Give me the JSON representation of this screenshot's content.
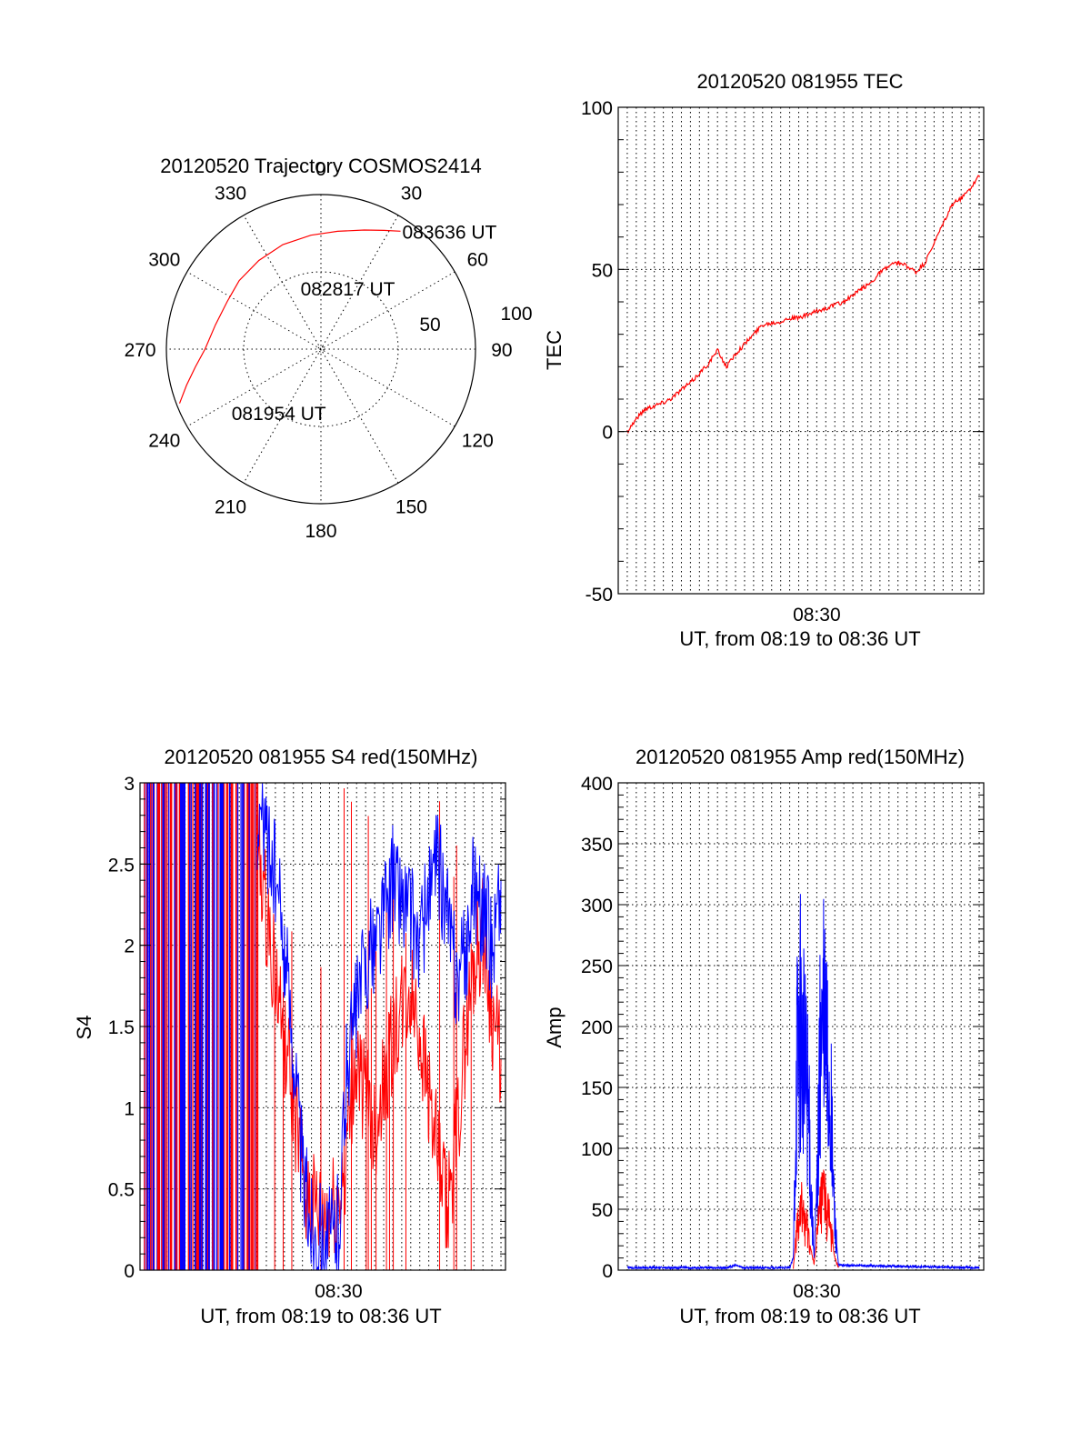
{
  "chart_data": [
    {
      "type": "polar",
      "title": "20120520 Trajectory COSMOS2414",
      "azimuth_labels": [
        "0",
        "30",
        "60",
        "90",
        "120",
        "150",
        "180",
        "210",
        "240",
        "270",
        "300",
        "330"
      ],
      "radial_labels": [
        "50",
        "100"
      ],
      "series": [
        {
          "color": "#ff0000",
          "points": [
            {
              "az": 249,
              "zen": 98
            },
            {
              "az": 255,
              "zen": 90
            },
            {
              "az": 262,
              "zen": 82
            },
            {
              "az": 270,
              "zen": 75
            },
            {
              "az": 283,
              "zen": 70
            },
            {
              "az": 297,
              "zen": 68
            },
            {
              "az": 310,
              "zen": 69
            },
            {
              "az": 325,
              "zen": 70
            },
            {
              "az": 340,
              "zen": 72
            },
            {
              "az": 355,
              "zen": 74
            },
            {
              "az": 8,
              "zen": 77
            },
            {
              "az": 20,
              "zen": 82
            },
            {
              "az": 28,
              "zen": 87
            },
            {
              "az": 34,
              "zen": 92
            }
          ]
        }
      ],
      "annotations": [
        {
          "text": "083636 UT",
          "az": 34,
          "zen": 92
        },
        {
          "text": "082817 UT",
          "az": 340,
          "zen": 42
        },
        {
          "text": "081954 UT",
          "az": 235,
          "zen": 72
        }
      ]
    },
    {
      "type": "line",
      "title": "20120520 081955 TEC",
      "xlabel": "UT, from 08:19 to 08:36 UT",
      "ylabel": "TEC",
      "ylim": [
        -50,
        100
      ],
      "yticks": [
        "-50",
        "0",
        "50",
        "100"
      ],
      "xtick_labels": [
        {
          "text": "08:30",
          "t": 30
        }
      ],
      "grid": true,
      "series": [
        {
          "color": "#ff0000",
          "points": [
            [
              19.5,
              0
            ],
            [
              20,
              4
            ],
            [
              20.5,
              7
            ],
            [
              21,
              8
            ],
            [
              21.5,
              9
            ],
            [
              22,
              10.5
            ],
            [
              22.5,
              13
            ],
            [
              23,
              15
            ],
            [
              23.5,
              18
            ],
            [
              24,
              21
            ],
            [
              24.5,
              25
            ],
            [
              25,
              20
            ],
            [
              25.5,
              24
            ],
            [
              26,
              27
            ],
            [
              26.5,
              30
            ],
            [
              27,
              33
            ],
            [
              27.5,
              33.5
            ],
            [
              28,
              34
            ],
            [
              28.5,
              35
            ],
            [
              29,
              35
            ],
            [
              29.5,
              36
            ],
            [
              30,
              37
            ],
            [
              30.5,
              38
            ],
            [
              31,
              39
            ],
            [
              31.5,
              40
            ],
            [
              32,
              42
            ],
            [
              32.5,
              44
            ],
            [
              33,
              46
            ],
            [
              33.5,
              49
            ],
            [
              34,
              51
            ],
            [
              34.5,
              52
            ],
            [
              35,
              51
            ],
            [
              35.5,
              49
            ],
            [
              36,
              52
            ],
            [
              36.5,
              58
            ],
            [
              37,
              64
            ],
            [
              37.5,
              70
            ],
            [
              38,
              72
            ],
            [
              38.5,
              75
            ],
            [
              39,
              79
            ]
          ]
        }
      ]
    },
    {
      "type": "line",
      "title": "20120520 081955 S4 red(150MHz)",
      "xlabel": "UT, from 08:19 to 08:36 UT",
      "ylabel": "S4",
      "ylim": [
        0,
        3
      ],
      "yticks": [
        "0",
        "0.5",
        "1",
        "1.5",
        "2",
        "2.5",
        "3"
      ],
      "xtick_labels": [
        {
          "text": "08:30",
          "t": 30
        }
      ],
      "grid": true,
      "series": [
        {
          "color": "#ff0000",
          "points": [
            [
              25.5,
              2.6
            ],
            [
              26,
              2.2
            ],
            [
              26.5,
              1.8
            ],
            [
              27,
              1.4
            ],
            [
              27.5,
              1.0
            ],
            [
              28,
              0.6
            ],
            [
              28.5,
              0.4
            ],
            [
              29,
              0.3
            ],
            [
              29.5,
              0.35
            ],
            [
              30,
              0.4
            ],
            [
              30.5,
              0.8
            ],
            [
              31,
              1.3
            ],
            [
              31.5,
              1.05
            ],
            [
              32,
              0.9
            ],
            [
              32.5,
              1.1
            ],
            [
              33,
              1.4
            ],
            [
              33.5,
              1.6
            ],
            [
              34,
              1.7
            ],
            [
              34.5,
              1.5
            ],
            [
              35,
              1.1
            ],
            [
              35.5,
              0.7
            ],
            [
              36,
              0.35
            ],
            [
              36.5,
              0.8
            ],
            [
              37,
              1.4
            ],
            [
              37.5,
              1.9
            ],
            [
              38,
              2.1
            ],
            [
              38.5,
              1.6
            ],
            [
              39,
              1.3
            ]
          ]
        },
        {
          "color": "#0000ff",
          "points": [
            [
              25.5,
              2.8
            ],
            [
              26,
              2.7
            ],
            [
              26.5,
              2.4
            ],
            [
              27,
              2.0
            ],
            [
              27.5,
              1.4
            ],
            [
              28,
              0.6
            ],
            [
              28.5,
              0.3
            ],
            [
              29,
              0.2
            ],
            [
              29.5,
              0.2
            ],
            [
              30,
              0.3
            ],
            [
              30.5,
              1.3
            ],
            [
              31,
              1.6
            ],
            [
              31.5,
              1.9
            ],
            [
              32,
              2.0
            ],
            [
              32.5,
              2.2
            ],
            [
              33,
              2.4
            ],
            [
              33.5,
              2.3
            ],
            [
              34,
              2.2
            ],
            [
              34.5,
              2.0
            ],
            [
              35,
              2.3
            ],
            [
              35.5,
              2.5
            ],
            [
              36,
              2.2
            ],
            [
              36.5,
              1.8
            ],
            [
              37,
              1.9
            ],
            [
              37.5,
              2.4
            ],
            [
              38,
              2.2
            ],
            [
              38.5,
              2.0
            ],
            [
              39,
              2.4
            ]
          ]
        }
      ]
    },
    {
      "type": "line",
      "title": "20120520 081955 Amp red(150MHz)",
      "xlabel": "UT, from 08:19 to 08:36 UT",
      "ylabel": "Amp",
      "ylim": [
        0,
        400
      ],
      "yticks": [
        "0",
        "50",
        "100",
        "150",
        "200",
        "250",
        "300",
        "350",
        "400"
      ],
      "xtick_labels": [
        {
          "text": "08:30",
          "t": 30
        }
      ],
      "grid": true,
      "series": [
        {
          "color": "#0000ff",
          "points": [
            [
              19.5,
              2
            ],
            [
              25,
              2
            ],
            [
              25.5,
              4
            ],
            [
              26,
              2
            ],
            [
              28.5,
              2
            ],
            [
              28.7,
              10
            ],
            [
              28.9,
              180
            ],
            [
              29.1,
              200
            ],
            [
              29.3,
              170
            ],
            [
              29.5,
              150
            ],
            [
              29.7,
              60
            ],
            [
              29.85,
              10
            ],
            [
              30,
              60
            ],
            [
              30.2,
              180
            ],
            [
              30.4,
              200
            ],
            [
              30.6,
              170
            ],
            [
              30.8,
              120
            ],
            [
              31,
              40
            ],
            [
              31.2,
              4
            ],
            [
              35,
              3
            ],
            [
              39,
              2
            ]
          ]
        },
        {
          "color": "#ff0000",
          "points": [
            [
              28.7,
              2
            ],
            [
              28.9,
              35
            ],
            [
              29.1,
              50
            ],
            [
              29.3,
              40
            ],
            [
              29.5,
              30
            ],
            [
              29.7,
              15
            ],
            [
              29.85,
              5
            ],
            [
              30,
              25
            ],
            [
              30.2,
              50
            ],
            [
              30.4,
              60
            ],
            [
              30.6,
              45
            ],
            [
              30.8,
              30
            ],
            [
              31,
              10
            ],
            [
              31.2,
              2
            ]
          ]
        }
      ]
    }
  ]
}
